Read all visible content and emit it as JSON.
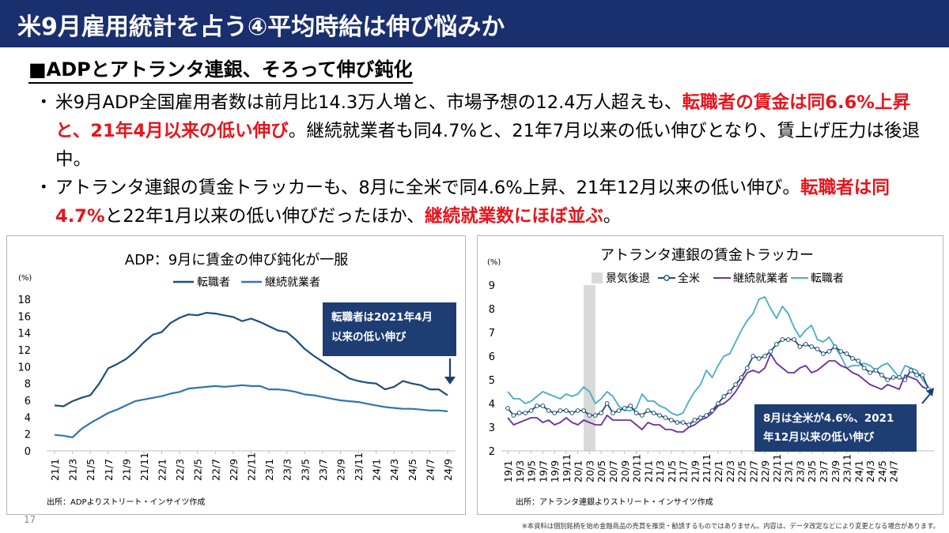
{
  "header": {
    "title": "米9月雇用統計を占う④平均時給は伸び悩みか",
    "subtitle": "■ADPとアトランタ連銀、そろって伸び鈍化"
  },
  "bullets": [
    {
      "parts": [
        {
          "text": "米9月ADP全国雇用者数は前月比14.3万人増と、市場予想の12.4万人超えも、",
          "red": false
        },
        {
          "text": "転職者の賃金は同6.6%上昇と、21年4月以来の低い伸び",
          "red": true
        },
        {
          "text": "。継続就業者も同4.7%と、21年7月以来の低い伸びとなり、賃上げ圧力は後退中。",
          "red": false
        }
      ]
    },
    {
      "parts": [
        {
          "text": "アトランタ連銀の賃金トラッカーも、8月に全米で同4.6%上昇、21年12月以来の低い伸び。",
          "red": false
        },
        {
          "text": "転職者は同4.7%",
          "red": true
        },
        {
          "text": "と22年1月以来の低い伸びだったほか、",
          "red": false
        },
        {
          "text": "継続就業数にほぼ並ぶ",
          "red": true
        },
        {
          "text": "。",
          "red": false
        }
      ]
    }
  ],
  "page_number": "17",
  "disclaimer": "※本資料は個別銘柄を始め金融商品の売買を推奨・勧誘するものではありません。内容は、データ改定などにより変更となる場合があります。",
  "colors": {
    "header_bg": "#1a2f6e",
    "emphasis_red": "#e8141b",
    "callout_bg": "#1e3d73",
    "dark_series": "#1f4e79",
    "light_series": "#2e75b6",
    "teal_series": "#4bacc6",
    "purple_series": "#7030a0",
    "recession_shade": "#d9d9d9"
  },
  "chart_data": [
    {
      "type": "line",
      "title": "ADP：9月に賃金の伸び鈍化が一服",
      "unit_label": "(%)",
      "ylim": [
        0,
        18
      ],
      "yticks": [
        0,
        2,
        4,
        6,
        8,
        10,
        12,
        14,
        16,
        18
      ],
      "x_tick_labels": [
        "21/1",
        "21/3",
        "21/5",
        "21/7",
        "21/9",
        "21/11",
        "22/1",
        "22/3",
        "22/5",
        "22/7",
        "22/9",
        "22/11",
        "23/1",
        "23/3",
        "23/5",
        "23/7",
        "23/9",
        "23/11",
        "24/1",
        "24/3",
        "24/5",
        "24/7",
        "24/9"
      ],
      "legend_position": "top",
      "callout": "転職者は2021年4月以来の低い伸び",
      "source": "出所：ADPよりストリート・インサイツ作成",
      "x": [
        "21/1",
        "21/2",
        "21/3",
        "21/4",
        "21/5",
        "21/6",
        "21/7",
        "21/8",
        "21/9",
        "21/10",
        "21/11",
        "21/12",
        "22/1",
        "22/2",
        "22/3",
        "22/4",
        "22/5",
        "22/6",
        "22/7",
        "22/8",
        "22/9",
        "22/10",
        "22/11",
        "22/12",
        "23/1",
        "23/2",
        "23/3",
        "23/4",
        "23/5",
        "23/6",
        "23/7",
        "23/8",
        "23/9",
        "23/10",
        "23/11",
        "23/12",
        "24/1",
        "24/2",
        "24/3",
        "24/4",
        "24/5",
        "24/6",
        "24/7",
        "24/8",
        "24/9"
      ],
      "series": [
        {
          "name": "転職者",
          "color": "#1f4e79",
          "values": [
            5.4,
            5.3,
            5.9,
            6.3,
            6.6,
            8.0,
            9.8,
            10.3,
            10.9,
            11.8,
            12.9,
            13.8,
            14.1,
            15.2,
            15.8,
            16.2,
            16.1,
            16.4,
            16.3,
            16.1,
            15.9,
            15.4,
            15.7,
            15.3,
            14.8,
            14.3,
            14.1,
            13.2,
            12.1,
            11.3,
            10.6,
            9.9,
            9.3,
            8.6,
            8.3,
            8.1,
            8.0,
            7.3,
            7.6,
            8.3,
            8.0,
            7.8,
            7.3,
            7.3,
            6.6
          ]
        },
        {
          "name": "継続就業者",
          "color": "#2e75b6",
          "values": [
            1.9,
            1.8,
            1.6,
            2.6,
            3.3,
            3.9,
            4.5,
            4.9,
            5.4,
            5.9,
            6.1,
            6.3,
            6.5,
            6.8,
            7.0,
            7.4,
            7.5,
            7.6,
            7.7,
            7.6,
            7.7,
            7.8,
            7.7,
            7.7,
            7.3,
            7.3,
            7.2,
            7.0,
            6.7,
            6.6,
            6.4,
            6.2,
            6.0,
            5.9,
            5.8,
            5.6,
            5.4,
            5.2,
            5.1,
            5.0,
            5.0,
            4.9,
            4.8,
            4.8,
            4.7
          ]
        }
      ]
    },
    {
      "type": "line",
      "title": "アトランタ連銀の賃金トラッカー",
      "unit_label": "(%)",
      "ylim": [
        2,
        9
      ],
      "yticks": [
        2,
        3,
        4,
        5,
        6,
        7,
        8,
        9
      ],
      "x_tick_labels": [
        "19/1",
        "19/3",
        "19/5",
        "19/7",
        "19/9",
        "19/11",
        "20/1",
        "20/3",
        "20/5",
        "20/7",
        "20/9",
        "20/11",
        "21/1",
        "21/3",
        "21/5",
        "21/7",
        "21/9",
        "21/11",
        "22/1",
        "22/3",
        "22/5",
        "22/7",
        "22/9",
        "22/11",
        "23/1",
        "23/3",
        "23/5",
        "23/7",
        "23/9",
        "23/11",
        "24/1",
        "24/3",
        "24/5",
        "24/7"
      ],
      "legend_position": "top",
      "recession": {
        "label": "景気後退",
        "start": "20/2",
        "end": "20/4"
      },
      "callout": "8月は全米が4.6%、2021年12月以来の低い伸び",
      "source": "出所：アトランタ連銀よりストリート・インサイツ作成",
      "x_start": "19/1",
      "series": [
        {
          "name": "全米",
          "color": "#1f4e79",
          "marker": "circle",
          "values": [
            3.8,
            3.5,
            3.6,
            3.6,
            3.7,
            3.9,
            3.9,
            3.7,
            3.6,
            3.7,
            3.7,
            3.6,
            3.7,
            3.7,
            3.5,
            3.5,
            3.6,
            4.0,
            3.6,
            3.7,
            3.8,
            3.9,
            3.6,
            3.5,
            3.7,
            3.6,
            3.5,
            3.4,
            3.3,
            3.2,
            3.2,
            3.1,
            3.3,
            3.4,
            3.5,
            3.7,
            4.0,
            4.3,
            4.5,
            4.8,
            5.1,
            5.5,
            6.0,
            5.9,
            6.0,
            6.2,
            6.5,
            6.7,
            6.7,
            6.7,
            6.4,
            6.5,
            6.4,
            6.3,
            6.1,
            6.2,
            6.4,
            6.2,
            6.1,
            5.9,
            5.8,
            5.5,
            5.3,
            5.4,
            5.2,
            5.0,
            5.1,
            5.1,
            5.0,
            5.4,
            5.2,
            5.2,
            4.6
          ]
        },
        {
          "name": "継続就業者",
          "color": "#7030a0",
          "values": [
            3.4,
            3.1,
            3.2,
            3.3,
            3.4,
            3.4,
            3.2,
            3.3,
            3.1,
            3.2,
            3.4,
            3.2,
            3.1,
            3.3,
            3.2,
            3.1,
            3.1,
            3.5,
            3.3,
            3.3,
            3.3,
            3.3,
            3.1,
            2.9,
            3.2,
            3.1,
            3.1,
            2.9,
            2.9,
            2.8,
            2.8,
            3.0,
            3.1,
            3.3,
            3.4,
            3.6,
            3.9,
            4.0,
            4.2,
            4.5,
            4.9,
            5.3,
            5.4,
            5.3,
            5.5,
            6.1,
            5.7,
            5.5,
            5.3,
            5.3,
            5.5,
            5.6,
            5.3,
            5.4,
            5.6,
            5.8,
            5.8,
            5.6,
            5.5,
            5.3,
            5.2,
            5.0,
            4.8,
            4.7,
            4.6,
            4.8,
            4.7,
            4.6,
            5.2,
            5.1,
            5.0,
            4.7,
            4.6
          ]
        },
        {
          "name": "転職者",
          "color": "#4bacc6",
          "values": [
            4.5,
            4.2,
            4.2,
            4.0,
            4.1,
            4.3,
            4.5,
            4.4,
            4.3,
            4.2,
            4.4,
            4.3,
            4.4,
            4.7,
            4.5,
            4.0,
            4.2,
            4.5,
            4.3,
            3.9,
            3.7,
            3.7,
            3.8,
            4.4,
            4.1,
            4.1,
            3.9,
            3.8,
            3.6,
            3.5,
            3.6,
            4.1,
            4.5,
            4.8,
            5.4,
            5.1,
            5.6,
            6.0,
            6.1,
            6.6,
            7.1,
            7.5,
            7.8,
            8.4,
            8.5,
            8.0,
            7.6,
            8.1,
            7.8,
            7.2,
            6.8,
            7.1,
            7.3,
            6.7,
            6.6,
            6.8,
            6.4,
            6.0,
            5.5,
            5.6,
            5.6,
            5.7,
            5.6,
            5.4,
            5.6,
            5.7,
            5.4,
            5.1,
            5.6,
            5.5,
            5.4,
            5.0,
            4.7
          ]
        }
      ]
    }
  ]
}
